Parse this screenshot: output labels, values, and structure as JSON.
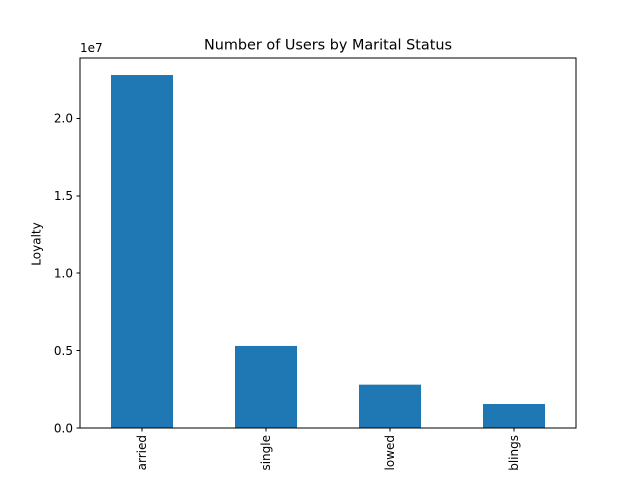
{
  "chart_data": {
    "type": "bar",
    "title": "Number of Users by Marital Status",
    "xlabel": "",
    "ylabel": "Loyalty",
    "ylim": [
      0,
      23900000
    ],
    "y_offset_label": "1e7",
    "y_ticks": [
      0,
      5000000,
      10000000,
      15000000,
      20000000
    ],
    "y_tick_labels": [
      "0.0",
      "0.5",
      "1.0",
      "1.5",
      "2.0"
    ],
    "categories": [
      "arried",
      "single",
      "lowed",
      "blings"
    ],
    "values": [
      22800000,
      5300000,
      2800000,
      1550000
    ],
    "bar_color": "#1f77b4",
    "grid": false,
    "legend": "none"
  }
}
